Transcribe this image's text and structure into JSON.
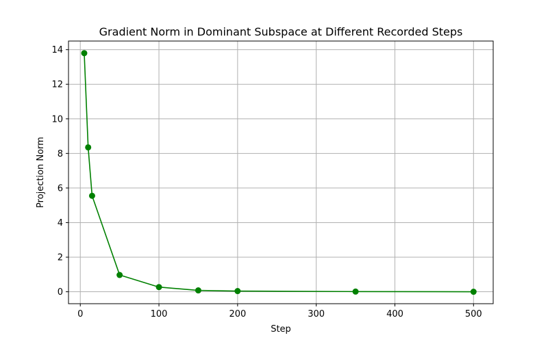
{
  "chart_data": {
    "type": "line",
    "title": "Gradient Norm in Dominant Subspace at Different Recorded Steps",
    "xlabel": "Step",
    "ylabel": "Projection Norm",
    "xlim": [
      -15,
      525
    ],
    "ylim": [
      -0.69,
      14.5
    ],
    "xticks": [
      0,
      100,
      200,
      300,
      400,
      500
    ],
    "yticks": [
      0,
      2,
      4,
      6,
      8,
      10,
      12,
      14
    ],
    "grid": true,
    "series": [
      {
        "color": "#008000",
        "x": [
          5,
          10,
          15,
          50,
          100,
          150,
          200,
          350,
          500
        ],
        "y": [
          13.8,
          8.35,
          5.55,
          0.97,
          0.27,
          0.08,
          0.04,
          0.01,
          0.0
        ]
      }
    ]
  }
}
